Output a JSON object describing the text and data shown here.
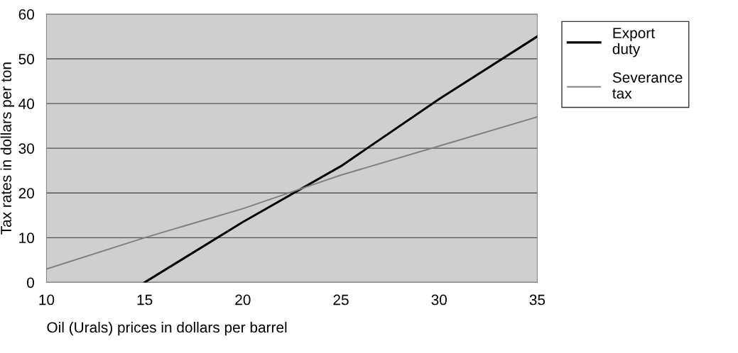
{
  "chart_data": {
    "type": "line",
    "xlabel": "Oil (Urals) prices in dollars per barrel",
    "ylabel": "Tax rates in dollars per ton",
    "series": [
      {
        "name": "Export duty",
        "color": "#000000",
        "x": [
          15,
          20,
          25,
          30,
          35
        ],
        "values": [
          0,
          13.5,
          26,
          41,
          55
        ]
      },
      {
        "name": "Severance tax",
        "color": "#808080",
        "x": [
          10,
          15,
          20,
          25,
          30,
          35
        ],
        "values": [
          3,
          10,
          16.5,
          24,
          30.5,
          37
        ]
      }
    ],
    "xlim": [
      10,
      35
    ],
    "xticks": [
      10,
      15,
      20,
      25,
      30,
      35
    ],
    "ylim": [
      0,
      60
    ],
    "yticks": [
      0,
      10,
      20,
      30,
      40,
      50,
      60
    ],
    "grid": "y",
    "legend": "right",
    "marker": "none",
    "line_style": "solid"
  }
}
